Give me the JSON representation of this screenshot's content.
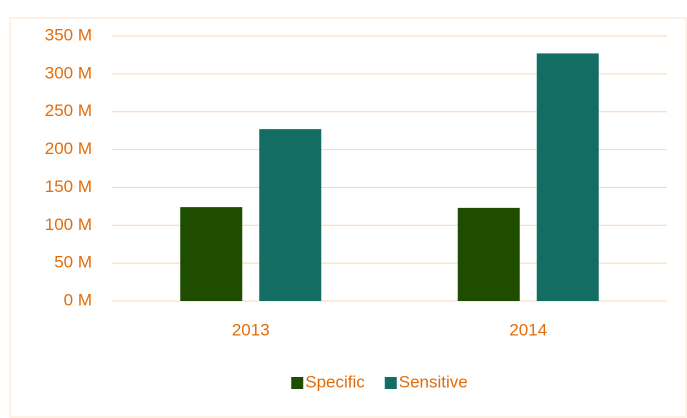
{
  "chart_data": {
    "type": "bar",
    "categories": [
      "2013",
      "2014"
    ],
    "series": [
      {
        "name": "Specific",
        "color": "#1e4d00",
        "values": [
          124,
          123
        ]
      },
      {
        "name": "Sensitive",
        "color": "#136d63",
        "values": [
          227,
          327
        ]
      }
    ],
    "ylim": [
      0,
      350
    ],
    "yticks": [
      {
        "value": 0,
        "label": "0 M"
      },
      {
        "value": 50,
        "label": "50 M"
      },
      {
        "value": 100,
        "label": "100 M"
      },
      {
        "value": 150,
        "label": "150 M"
      },
      {
        "value": 200,
        "label": "200 M"
      },
      {
        "value": 250,
        "label": "250 M"
      },
      {
        "value": 300,
        "label": "300 M"
      },
      {
        "value": 350,
        "label": "350 M"
      }
    ],
    "grid": true,
    "legend": "bottom"
  }
}
